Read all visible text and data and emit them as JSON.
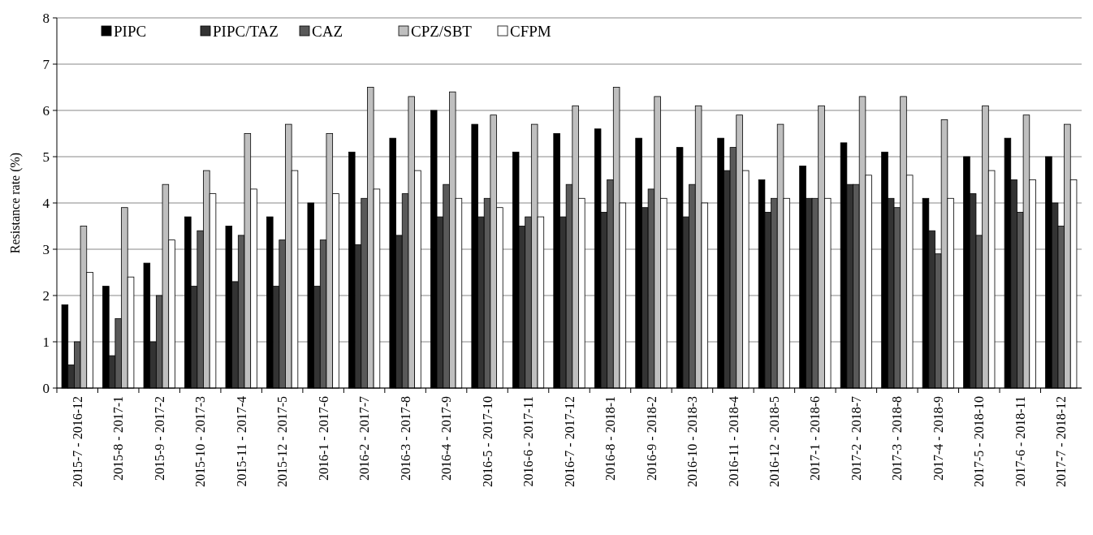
{
  "chart_data": {
    "type": "bar",
    "ylabel": "Resistance rate (%)",
    "categories": [
      "2015-7 - 2016-12",
      "2015-8 - 2017-1",
      "2015-9 - 2017-2",
      "2015-10 - 2017-3",
      "2015-11 - 2017-4",
      "2015-12 - 2017-5",
      "2016-1 - 2017-6",
      "2016-2 - 2017-7",
      "2016-3 - 2017-8",
      "2016-4 - 2017-9",
      "2016-5 - 2017-10",
      "2016-6 - 2017-11",
      "2016-7 - 2017-12",
      "2016-8 - 2018-1",
      "2016-9 - 2018-2",
      "2016-10 - 2018-3",
      "2016-11 - 2018-4",
      "2016-12 - 2018-5",
      "2017-1 - 2018-6",
      "2017-2 - 2018-7",
      "2017-3 - 2018-8",
      "2017-4 - 2018-9",
      "2017-5 - 2018-10",
      "2017-6 - 2018-11",
      "2017-7 - 2018-12"
    ],
    "series": [
      {
        "name": "PIPC",
        "color": "#000000",
        "values": [
          1.8,
          2.2,
          2.7,
          3.7,
          3.5,
          3.7,
          4.0,
          5.1,
          5.4,
          6.0,
          5.7,
          5.1,
          5.5,
          5.6,
          5.4,
          5.2,
          5.4,
          4.5,
          4.8,
          5.3,
          5.1,
          4.1,
          5.0,
          5.4,
          5.0
        ]
      },
      {
        "name": "PIPC/TAZ",
        "color": "#333333",
        "values": [
          0.5,
          0.7,
          1.0,
          2.2,
          2.3,
          2.2,
          2.2,
          3.1,
          3.3,
          3.7,
          3.7,
          3.5,
          3.7,
          3.8,
          3.9,
          3.7,
          4.7,
          3.8,
          4.1,
          4.4,
          4.1,
          3.4,
          4.2,
          4.5,
          4.0
        ]
      },
      {
        "name": "CAZ",
        "color": "#595959",
        "values": [
          1.0,
          1.5,
          2.0,
          3.4,
          3.3,
          3.2,
          3.2,
          4.1,
          4.2,
          4.4,
          4.1,
          3.7,
          4.4,
          4.5,
          4.3,
          4.4,
          5.2,
          4.1,
          4.1,
          4.4,
          3.9,
          2.9,
          3.3,
          3.8,
          3.5
        ]
      },
      {
        "name": "CPZ/SBT",
        "color": "#bfbfbf",
        "values": [
          3.5,
          3.9,
          4.4,
          4.7,
          5.5,
          5.7,
          5.5,
          6.5,
          6.3,
          6.4,
          5.9,
          5.7,
          6.1,
          6.5,
          6.3,
          6.1,
          5.9,
          5.7,
          6.1,
          6.3,
          6.3,
          5.8,
          6.1,
          5.9,
          5.7
        ]
      },
      {
        "name": "CFPM",
        "color": "#ffffff",
        "values": [
          2.5,
          2.4,
          3.2,
          4.2,
          4.3,
          4.7,
          4.2,
          4.3,
          4.7,
          4.1,
          3.9,
          3.7,
          4.1,
          4.0,
          4.1,
          4.0,
          4.7,
          4.1,
          4.1,
          4.6,
          4.6,
          4.1,
          4.7,
          4.5,
          4.5
        ]
      }
    ],
    "ylim": [
      0,
      8
    ],
    "yticks": [
      0,
      1,
      2,
      3,
      4,
      5,
      6,
      7,
      8
    ],
    "grid": "y",
    "legend": "top left"
  }
}
